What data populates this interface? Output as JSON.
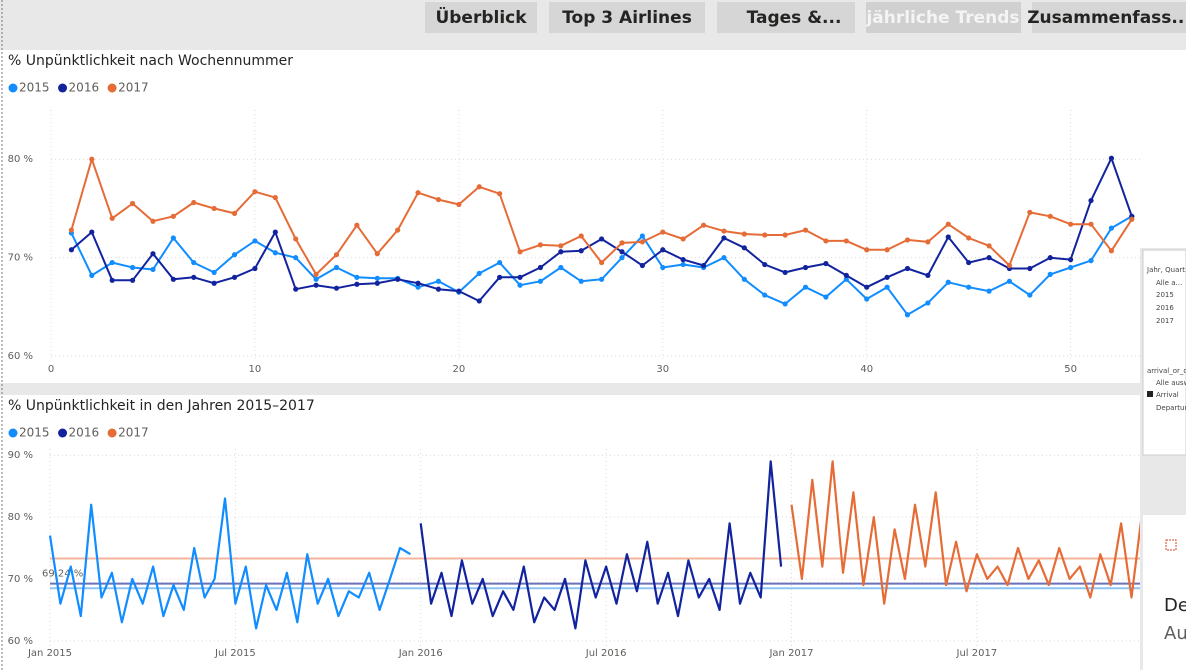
{
  "tabs": [
    "Überblick",
    "Top 3 Airlines",
    "Tages &...",
    "jährliche Trends",
    "Zusammenfass..."
  ],
  "chart_data": [
    {
      "type": "line",
      "title": "% Unpünktlichkeit nach Wochennummer",
      "grid": true,
      "markers": true,
      "x": [
        1,
        2,
        3,
        4,
        5,
        6,
        7,
        8,
        9,
        10,
        11,
        12,
        13,
        14,
        15,
        16,
        17,
        18,
        19,
        20,
        21,
        22,
        23,
        24,
        25,
        26,
        27,
        28,
        29,
        30,
        31,
        32,
        33,
        34,
        35,
        36,
        37,
        38,
        39,
        40,
        41,
        42,
        43,
        44,
        45,
        46,
        47,
        48,
        49,
        50,
        51,
        52,
        53
      ],
      "xlim": [
        0,
        53.5
      ],
      "xticks": [
        0,
        10,
        20,
        30,
        40,
        50
      ],
      "ylim": [
        59.4,
        85
      ],
      "yticks": [
        {
          "value": 60,
          "label": "60 %"
        },
        {
          "value": 70,
          "label": "70 %"
        },
        {
          "value": 80,
          "label": "80 %"
        }
      ],
      "series": [
        {
          "name": "2015",
          "color": "#118dff",
          "values": [
            72.5,
            68.2,
            69.5,
            69.0,
            68.8,
            72.0,
            69.5,
            68.5,
            70.3,
            71.7,
            70.5,
            70.0,
            67.8,
            69.0,
            68.0,
            67.9,
            67.9,
            67.0,
            67.6,
            66.5,
            68.4,
            69.5,
            67.2,
            67.6,
            69.0,
            67.6,
            67.8,
            70.0,
            72.2,
            69.0,
            69.3,
            69.0,
            70.0,
            67.8,
            66.2,
            65.3,
            67.0,
            66.0,
            67.8,
            65.8,
            67.0,
            64.2,
            65.4,
            67.5,
            67.0,
            66.6,
            67.6,
            66.2,
            68.3,
            69.0,
            69.7,
            73.0,
            74.2
          ]
        },
        {
          "name": "2016",
          "color": "#12239e",
          "values": [
            70.8,
            72.6,
            67.7,
            67.7,
            70.4,
            67.8,
            68.0,
            67.4,
            68.0,
            68.9,
            72.6,
            66.8,
            67.2,
            66.9,
            67.3,
            67.4,
            67.8,
            67.4,
            66.8,
            66.6,
            65.6,
            68.0,
            68.0,
            69.0,
            70.6,
            70.7,
            71.9,
            70.6,
            69.2,
            70.8,
            69.8,
            69.2,
            72.0,
            71.0,
            69.3,
            68.5,
            69.0,
            69.4,
            68.2,
            67.0,
            68.0,
            68.9,
            68.2,
            72.1,
            69.5,
            70.0,
            68.9,
            68.9,
            70.0,
            69.8,
            75.8,
            80.1,
            74.2
          ]
        },
        {
          "name": "2017",
          "color": "#e66c37",
          "values": [
            72.8,
            80.0,
            74.0,
            75.5,
            73.7,
            74.2,
            75.6,
            75.0,
            74.5,
            76.7,
            76.1,
            71.9,
            68.3,
            70.3,
            73.3,
            70.4,
            72.8,
            76.6,
            75.9,
            75.4,
            77.2,
            76.5,
            70.6,
            71.3,
            71.2,
            72.2,
            69.5,
            71.5,
            71.6,
            72.6,
            71.9,
            73.3,
            72.7,
            72.4,
            72.3,
            72.3,
            72.8,
            71.7,
            71.7,
            70.8,
            70.8,
            71.8,
            71.6,
            73.4,
            72.0,
            71.2,
            69.2,
            74.6,
            74.2,
            73.4,
            73.4,
            70.7,
            73.9
          ]
        }
      ]
    },
    {
      "type": "line",
      "title": "% Unpünktlichkeit in den Jahren 2015–2017",
      "grid": true,
      "markers": false,
      "xlim": [
        2015,
        2017.94
      ],
      "xticks": [
        {
          "value": 2015,
          "label": "Jan 2015"
        },
        {
          "value": 2015.5,
          "label": "Jul 2015"
        },
        {
          "value": 2016,
          "label": "Jan 2016"
        },
        {
          "value": 2016.5,
          "label": "Jul 2016"
        },
        {
          "value": 2017,
          "label": "Jan 2017"
        },
        {
          "value": 2017.5,
          "label": "Jul 2017"
        }
      ],
      "ylim": [
        59,
        91
      ],
      "yticks": [
        {
          "value": 60,
          "label": "60 %"
        },
        {
          "value": 70,
          "label": "70 %"
        },
        {
          "value": 80,
          "label": "80 %"
        },
        {
          "value": 90,
          "label": "90 %"
        }
      ],
      "reference_lines": [
        {
          "value": 73.3,
          "color": "#f4b49a"
        },
        {
          "value": 69.24,
          "label": "69,24 %",
          "color": "#6b70b8"
        },
        {
          "value": 68.5,
          "color": "#8cc4f5"
        }
      ],
      "series": [
        {
          "name": "2015",
          "color": "#118dff",
          "x": [
            2015.0,
            2015.028,
            2015.056,
            2015.083,
            2015.111,
            2015.139,
            2015.167,
            2015.194,
            2015.222,
            2015.25,
            2015.278,
            2015.306,
            2015.333,
            2015.361,
            2015.389,
            2015.417,
            2015.444,
            2015.472,
            2015.5,
            2015.528,
            2015.556,
            2015.583,
            2015.611,
            2015.639,
            2015.667,
            2015.694,
            2015.722,
            2015.75,
            2015.778,
            2015.806,
            2015.833,
            2015.861,
            2015.889,
            2015.917,
            2015.944,
            2015.972
          ],
          "values": [
            77,
            66,
            72,
            64,
            82,
            67,
            71,
            63,
            70,
            66,
            72,
            64,
            69,
            65,
            75,
            67,
            70,
            83,
            66,
            72,
            62,
            69,
            65,
            71,
            63,
            74,
            66,
            70,
            64,
            68,
            67,
            71,
            65,
            70,
            75,
            74
          ]
        },
        {
          "name": "2016",
          "color": "#12239e",
          "x": [
            2016.0,
            2016.028,
            2016.056,
            2016.083,
            2016.111,
            2016.139,
            2016.167,
            2016.194,
            2016.222,
            2016.25,
            2016.278,
            2016.306,
            2016.333,
            2016.361,
            2016.389,
            2016.417,
            2016.444,
            2016.472,
            2016.5,
            2016.528,
            2016.556,
            2016.583,
            2016.611,
            2016.639,
            2016.667,
            2016.694,
            2016.722,
            2016.75,
            2016.778,
            2016.806,
            2016.833,
            2016.861,
            2016.889,
            2016.917,
            2016.944,
            2016.972
          ],
          "values": [
            79,
            66,
            71,
            64,
            73,
            66,
            70,
            64,
            68,
            65,
            72,
            63,
            67,
            65,
            70,
            62,
            73,
            67,
            72,
            66,
            74,
            68,
            76,
            66,
            71,
            64,
            73,
            67,
            70,
            65,
            79,
            66,
            71,
            67,
            89,
            72
          ]
        },
        {
          "name": "2017",
          "color": "#e66c37",
          "x": [
            2017.0,
            2017.028,
            2017.056,
            2017.083,
            2017.111,
            2017.139,
            2017.167,
            2017.194,
            2017.222,
            2017.25,
            2017.278,
            2017.306,
            2017.333,
            2017.361,
            2017.389,
            2017.417,
            2017.444,
            2017.472,
            2017.5,
            2017.528,
            2017.556,
            2017.583,
            2017.611,
            2017.639,
            2017.667,
            2017.694,
            2017.722,
            2017.75,
            2017.778,
            2017.806,
            2017.833,
            2017.861,
            2017.889,
            2017.917,
            2017.944
          ],
          "values": [
            82,
            70,
            86,
            72,
            89,
            71,
            84,
            69,
            80,
            66,
            78,
            70,
            82,
            72,
            84,
            69,
            76,
            68,
            74,
            70,
            72,
            69,
            75,
            70,
            73,
            69,
            75,
            70,
            72,
            67,
            74,
            69,
            79,
            67,
            80
          ]
        }
      ]
    }
  ],
  "slicer": {
    "title1": "Jahr, Quart...",
    "items1": [
      "Alle a...",
      "2015",
      "2016",
      "2017"
    ],
    "title2": "arrival_or_de...",
    "items2": [
      "Alle ausw...",
      "Arrival",
      "Departure"
    ]
  },
  "popup": {
    "line1": "De",
    "line2": "Au"
  }
}
